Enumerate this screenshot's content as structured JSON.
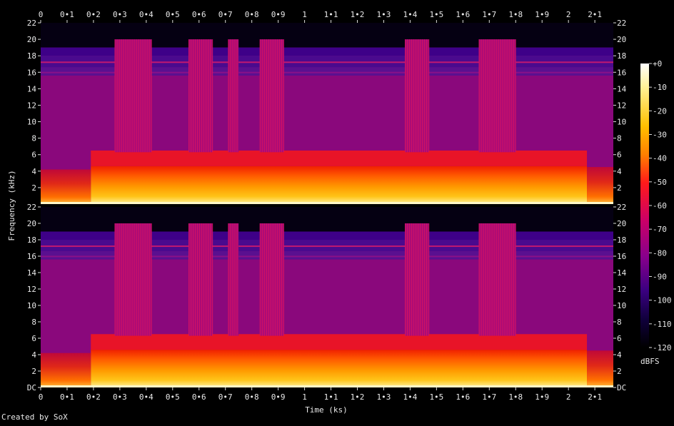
{
  "footer": {
    "created_by": "Created by SoX"
  },
  "chart_data": {
    "type": "heatmap",
    "title": "",
    "xlabel": "Time (ks)",
    "ylabel": "Frequency (kHz)",
    "channels": 2,
    "x_ticks": [
      "0",
      "0•1",
      "0•2",
      "0•3",
      "0•4",
      "0•5",
      "0•6",
      "0•7",
      "0•8",
      "0•9",
      "1",
      "1•1",
      "1•2",
      "1•3",
      "1•4",
      "1•5",
      "1•6",
      "1•7",
      "1•8",
      "1•9",
      "2",
      "2•1"
    ],
    "x_tick_values": [
      0,
      0.1,
      0.2,
      0.3,
      0.4,
      0.5,
      0.6,
      0.7,
      0.8,
      0.9,
      1.0,
      1.1,
      1.2,
      1.3,
      1.4,
      1.5,
      1.6,
      1.7,
      1.8,
      1.9,
      2.0,
      2.1
    ],
    "xlim": [
      0,
      2.17
    ],
    "y_ticks_top": [
      "22",
      "20",
      "18",
      "16",
      "14",
      "12",
      "10",
      "8",
      "6",
      "4",
      "2"
    ],
    "y_ticks_bottom": [
      "22",
      "20",
      "18",
      "16",
      "14",
      "12",
      "10",
      "8",
      "6",
      "4",
      "2",
      "DC"
    ],
    "y_tick_values": [
      22,
      20,
      18,
      16,
      14,
      12,
      10,
      8,
      6,
      4,
      2,
      0
    ],
    "ylim": [
      0,
      22
    ],
    "colorbar": {
      "label": "dBFS",
      "ticks": [
        "+0",
        "-10",
        "-20",
        "-30",
        "-40",
        "-50",
        "-60",
        "-70",
        "-80",
        "-90",
        "-100",
        "-110",
        "-120"
      ],
      "tick_values": [
        0,
        -10,
        -20,
        -30,
        -40,
        -50,
        -60,
        -70,
        -80,
        -90,
        -100,
        -110,
        -120
      ],
      "range": [
        -120,
        0
      ]
    },
    "bursts_ks": [
      [
        0.28,
        0.42
      ],
      [
        0.56,
        0.65
      ],
      [
        0.71,
        0.75
      ],
      [
        0.83,
        0.92
      ],
      [
        1.38,
        1.47
      ],
      [
        1.66,
        1.8
      ]
    ],
    "segments_ks": {
      "intro_end": 0.19,
      "outro_start": 2.07
    }
  }
}
